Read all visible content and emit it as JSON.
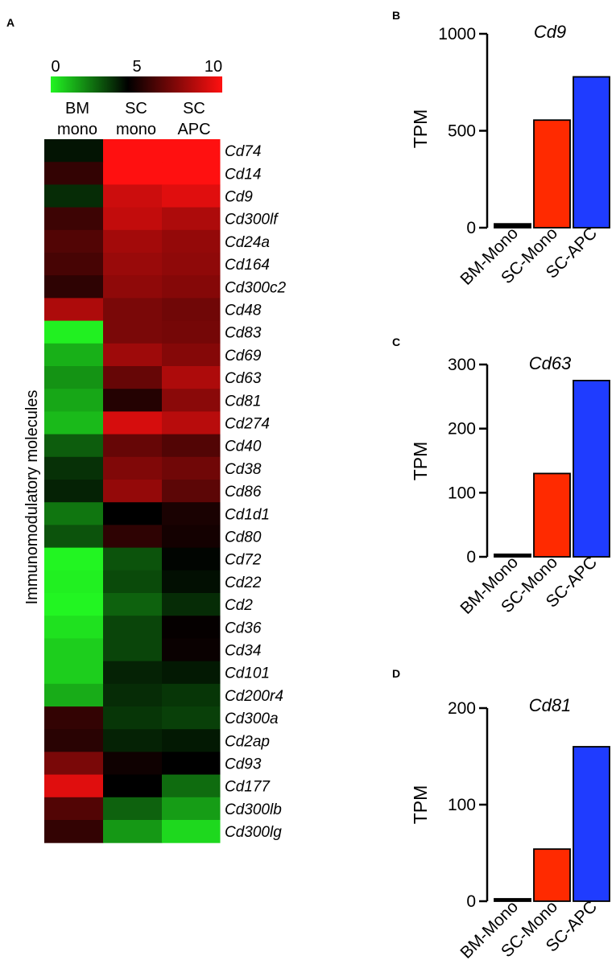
{
  "panel_labels": {
    "a": "A",
    "b": "B",
    "c": "C",
    "d": "D"
  },
  "heatmap": {
    "scale": {
      "min_label": "0",
      "mid_label": "5",
      "max_label": "10",
      "colors": [
        "#22f522",
        "#000000",
        "#ff1010"
      ]
    },
    "y_axis_label": "Immunomodulatory molecules",
    "columns": [
      {
        "line1": "BM",
        "line2": "mono"
      },
      {
        "line1": "SC",
        "line2": "mono"
      },
      {
        "line1": "SC",
        "line2": "APC"
      }
    ]
  },
  "chart_data": [
    {
      "type": "heatmap",
      "color_range": [
        0,
        10
      ],
      "columns": [
        "BM mono",
        "SC mono",
        "SC APC"
      ],
      "rows": [
        "Cd74",
        "Cd14",
        "Cd9",
        "Cd300lf",
        "Cd24a",
        "Cd164",
        "Cd300c2",
        "Cd48",
        "Cd83",
        "Cd69",
        "Cd63",
        "Cd81",
        "Cd274",
        "Cd40",
        "Cd38",
        "Cd86",
        "Cd1d1",
        "Cd80",
        "Cd72",
        "Cd22",
        "Cd2",
        "Cd36",
        "Cd34",
        "Cd101",
        "Cd200r4",
        "Cd300a",
        "Cd2ap",
        "Cd93",
        "Cd177",
        "Cd300lb",
        "Cd300lg"
      ],
      "values": [
        [
          4.6,
          10,
          10
        ],
        [
          6.0,
          10,
          10
        ],
        [
          4.1,
          9.0,
          9.4
        ],
        [
          6.2,
          8.8,
          8.4
        ],
        [
          6.6,
          8.2,
          7.9
        ],
        [
          6.4,
          8.0,
          7.8
        ],
        [
          5.9,
          7.8,
          7.6
        ],
        [
          8.4,
          7.4,
          7.2
        ],
        [
          0.1,
          7.4,
          7.3
        ],
        [
          1.4,
          8.1,
          7.6
        ],
        [
          2.0,
          7.0,
          8.4
        ],
        [
          1.6,
          5.7,
          7.7
        ],
        [
          1.2,
          9.2,
          8.6
        ],
        [
          3.1,
          7.0,
          6.6
        ],
        [
          4.0,
          7.5,
          7.2
        ],
        [
          4.3,
          7.9,
          6.8
        ],
        [
          2.6,
          5.0,
          5.5
        ],
        [
          3.3,
          5.9,
          5.4
        ],
        [
          0.0,
          3.3,
          4.9
        ],
        [
          0.1,
          3.5,
          4.7
        ],
        [
          0.0,
          3.0,
          4.1
        ],
        [
          0.4,
          3.6,
          5.1
        ],
        [
          0.8,
          3.6,
          5.2
        ],
        [
          0.8,
          4.3,
          4.5
        ],
        [
          1.5,
          4.1,
          3.9
        ],
        [
          6.0,
          3.9,
          3.7
        ],
        [
          5.8,
          4.3,
          4.5
        ],
        [
          7.4,
          5.3,
          5.0
        ],
        [
          9.4,
          5.0,
          2.8
        ],
        [
          6.6,
          3.0,
          1.8
        ],
        [
          6.0,
          1.9,
          0.6
        ]
      ]
    },
    {
      "type": "bar",
      "title": "Cd9",
      "ylabel": "TPM",
      "ylim": [
        0,
        1000
      ],
      "yticks": [
        "0",
        "500",
        "1000"
      ],
      "categories": [
        "BM-Mono",
        "SC-Mono",
        "SC-APC"
      ],
      "values": [
        20,
        555,
        778
      ],
      "colors": [
        "#000000",
        "#ff2a00",
        "#1f3cff"
      ]
    },
    {
      "type": "bar",
      "title": "Cd63",
      "ylabel": "TPM",
      "ylim": [
        0,
        300
      ],
      "yticks": [
        "0",
        "100",
        "200",
        "300"
      ],
      "categories": [
        "BM-Mono",
        "SC-Mono",
        "SC-APC"
      ],
      "values": [
        4,
        130,
        275
      ],
      "colors": [
        "#000000",
        "#ff2a00",
        "#1f3cff"
      ]
    },
    {
      "type": "bar",
      "title": "Cd81",
      "ylabel": "TPM",
      "ylim": [
        0,
        200
      ],
      "yticks": [
        "0",
        "100",
        "200"
      ],
      "categories": [
        "BM-Mono",
        "SC-Mono",
        "SC-APC"
      ],
      "values": [
        2,
        54,
        160
      ],
      "colors": [
        "#000000",
        "#ff2a00",
        "#1f3cff"
      ]
    }
  ]
}
